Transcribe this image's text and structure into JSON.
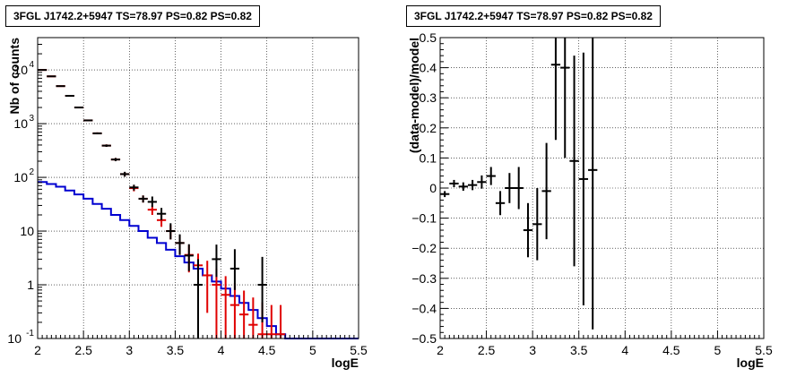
{
  "chart_data": [
    {
      "type": "scatter",
      "title": "3FGL J1742.2+5947 TS=78.97 PS=0.82 PS=0.82",
      "xlabel": "logE",
      "ylabel": "Nb of counts",
      "xlim": [
        2,
        5.5
      ],
      "ylim": [
        0.1,
        40000
      ],
      "yscale": "log",
      "grid": true,
      "x_ticks": [
        "2",
        "2.5",
        "3",
        "3.5",
        "4",
        "4.5",
        "5",
        "5.5"
      ],
      "y_ticks": [
        {
          "value": 0.1,
          "label": "10",
          "exp": "-1"
        },
        {
          "value": 1,
          "label": "1",
          "exp": ""
        },
        {
          "value": 10,
          "label": "10",
          "exp": ""
        },
        {
          "value": 100,
          "label": "10",
          "exp": "2"
        },
        {
          "value": 1000,
          "label": "10",
          "exp": "3"
        },
        {
          "value": 10000,
          "label": "10",
          "exp": "4"
        }
      ],
      "series": [
        {
          "color": "#000000",
          "style": "errorbar",
          "points": [
            {
              "x": 2.05,
              "y": 10000,
              "yerr_lo": 100,
              "yerr_hi": 100
            },
            {
              "x": 2.15,
              "y": 7600,
              "yerr_lo": 87,
              "yerr_hi": 87
            },
            {
              "x": 2.25,
              "y": 5000,
              "yerr_lo": 70,
              "yerr_hi": 70
            },
            {
              "x": 2.35,
              "y": 3300,
              "yerr_lo": 57,
              "yerr_hi": 57
            },
            {
              "x": 2.45,
              "y": 2000,
              "yerr_lo": 45,
              "yerr_hi": 45
            },
            {
              "x": 2.55,
              "y": 1150,
              "yerr_lo": 34,
              "yerr_hi": 34
            },
            {
              "x": 2.65,
              "y": 660,
              "yerr_lo": 26,
              "yerr_hi": 26
            },
            {
              "x": 2.75,
              "y": 390,
              "yerr_lo": 20,
              "yerr_hi": 20
            },
            {
              "x": 2.85,
              "y": 215,
              "yerr_lo": 15,
              "yerr_hi": 15
            },
            {
              "x": 2.95,
              "y": 115,
              "yerr_lo": 12,
              "yerr_hi": 12
            },
            {
              "x": 3.05,
              "y": 65,
              "yerr_lo": 8,
              "yerr_hi": 8
            },
            {
              "x": 3.15,
              "y": 40,
              "yerr_lo": 6,
              "yerr_hi": 6
            },
            {
              "x": 3.25,
              "y": 35,
              "yerr_lo": 7,
              "yerr_hi": 9
            },
            {
              "x": 3.35,
              "y": 21,
              "yerr_lo": 5,
              "yerr_hi": 6
            },
            {
              "x": 3.45,
              "y": 10,
              "yerr_lo": 3,
              "yerr_hi": 4
            },
            {
              "x": 3.55,
              "y": 6,
              "yerr_lo": 2.4,
              "yerr_hi": 2.7
            },
            {
              "x": 3.65,
              "y": 3.5,
              "yerr_lo": 1.7,
              "yerr_hi": 2.2
            },
            {
              "x": 3.75,
              "y": 1,
              "yerr_lo": 0.9,
              "yerr_hi": 2
            },
            {
              "x": 3.95,
              "y": 3,
              "yerr_lo": 1.6,
              "yerr_hi": 2.6
            },
            {
              "x": 4.15,
              "y": 2,
              "yerr_lo": 1.2,
              "yerr_hi": 2.6
            },
            {
              "x": 4.45,
              "y": 1,
              "yerr_lo": 0.8,
              "yerr_hi": 2.3
            }
          ]
        },
        {
          "color": "#e00000",
          "style": "errorbar",
          "points": [
            {
              "x": 2.05,
              "y": 10000,
              "yerr_lo": 100,
              "yerr_hi": 100
            },
            {
              "x": 2.15,
              "y": 7600,
              "yerr_lo": 87,
              "yerr_hi": 87
            },
            {
              "x": 2.25,
              "y": 5000,
              "yerr_lo": 70,
              "yerr_hi": 70
            },
            {
              "x": 2.35,
              "y": 3300,
              "yerr_lo": 57,
              "yerr_hi": 57
            },
            {
              "x": 2.45,
              "y": 2000,
              "yerr_lo": 45,
              "yerr_hi": 45
            },
            {
              "x": 2.55,
              "y": 1150,
              "yerr_lo": 34,
              "yerr_hi": 34
            },
            {
              "x": 2.65,
              "y": 660,
              "yerr_lo": 26,
              "yerr_hi": 26
            },
            {
              "x": 2.75,
              "y": 390,
              "yerr_lo": 20,
              "yerr_hi": 20
            },
            {
              "x": 2.85,
              "y": 215,
              "yerr_lo": 15,
              "yerr_hi": 15
            },
            {
              "x": 2.95,
              "y": 115,
              "yerr_lo": 11,
              "yerr_hi": 11
            },
            {
              "x": 3.05,
              "y": 63,
              "yerr_lo": 8,
              "yerr_hi": 8
            },
            {
              "x": 3.15,
              "y": 40,
              "yerr_lo": 6,
              "yerr_hi": 6
            },
            {
              "x": 3.25,
              "y": 25,
              "yerr_lo": 5,
              "yerr_hi": 5
            },
            {
              "x": 3.35,
              "y": 16,
              "yerr_lo": 4,
              "yerr_hi": 4
            },
            {
              "x": 3.45,
              "y": 10,
              "yerr_lo": 3,
              "yerr_hi": 3
            },
            {
              "x": 3.55,
              "y": 6,
              "yerr_lo": 2.4,
              "yerr_hi": 2.4
            },
            {
              "x": 3.65,
              "y": 3.6,
              "yerr_lo": 1.9,
              "yerr_hi": 1.9
            },
            {
              "x": 3.75,
              "y": 2.3,
              "yerr_lo": 1.5,
              "yerr_hi": 1.5
            },
            {
              "x": 3.85,
              "y": 1.5,
              "yerr_lo": 1.2,
              "yerr_hi": 1.3
            },
            {
              "x": 3.95,
              "y": 1.0,
              "yerr_lo": 0.9,
              "yerr_hi": 1.0
            },
            {
              "x": 4.05,
              "y": 0.65,
              "yerr_lo": 0.55,
              "yerr_hi": 0.8
            },
            {
              "x": 4.15,
              "y": 0.42,
              "yerr_lo": 0.32,
              "yerr_hi": 0.65
            },
            {
              "x": 4.25,
              "y": 0.28,
              "yerr_lo": 0.18,
              "yerr_hi": 0.5
            },
            {
              "x": 4.35,
              "y": 0.18,
              "yerr_lo": 0.08,
              "yerr_hi": 0.4
            },
            {
              "x": 4.45,
              "y": 0.12,
              "yerr_lo": 0.02,
              "yerr_hi": 0.35
            },
            {
              "x": 4.55,
              "y": 0.12,
              "yerr_lo": 0.02,
              "yerr_hi": 0.3
            },
            {
              "x": 4.65,
              "y": 0.12,
              "yerr_lo": 0.02,
              "yerr_hi": 0.3
            }
          ]
        },
        {
          "color": "#0000d0",
          "style": "step",
          "bins": [
            {
              "x0": 2.0,
              "x1": 2.1,
              "y": 82
            },
            {
              "x0": 2.1,
              "x1": 2.2,
              "y": 75
            },
            {
              "x0": 2.2,
              "x1": 2.3,
              "y": 67
            },
            {
              "x0": 2.3,
              "x1": 2.4,
              "y": 57
            },
            {
              "x0": 2.4,
              "x1": 2.5,
              "y": 48
            },
            {
              "x0": 2.5,
              "x1": 2.6,
              "y": 40
            },
            {
              "x0": 2.6,
              "x1": 2.7,
              "y": 32
            },
            {
              "x0": 2.7,
              "x1": 2.8,
              "y": 26
            },
            {
              "x0": 2.8,
              "x1": 2.9,
              "y": 20
            },
            {
              "x0": 2.9,
              "x1": 3.0,
              "y": 16
            },
            {
              "x0": 3.0,
              "x1": 3.1,
              "y": 12.5
            },
            {
              "x0": 3.1,
              "x1": 3.2,
              "y": 10
            },
            {
              "x0": 3.2,
              "x1": 3.3,
              "y": 7.5
            },
            {
              "x0": 3.3,
              "x1": 3.4,
              "y": 6
            },
            {
              "x0": 3.4,
              "x1": 3.5,
              "y": 4.5
            },
            {
              "x0": 3.5,
              "x1": 3.6,
              "y": 3.4
            },
            {
              "x0": 3.6,
              "x1": 3.7,
              "y": 2.6
            },
            {
              "x0": 3.7,
              "x1": 3.8,
              "y": 2.0
            },
            {
              "x0": 3.8,
              "x1": 3.9,
              "y": 1.5
            },
            {
              "x0": 3.9,
              "x1": 4.0,
              "y": 1.15
            },
            {
              "x0": 4.0,
              "x1": 4.1,
              "y": 0.85
            },
            {
              "x0": 4.1,
              "x1": 4.2,
              "y": 0.62
            },
            {
              "x0": 4.2,
              "x1": 4.3,
              "y": 0.46
            },
            {
              "x0": 4.3,
              "x1": 4.4,
              "y": 0.34
            },
            {
              "x0": 4.4,
              "x1": 4.5,
              "y": 0.24
            },
            {
              "x0": 4.5,
              "x1": 4.6,
              "y": 0.17
            },
            {
              "x0": 4.6,
              "x1": 4.7,
              "y": 0.12
            },
            {
              "x0": 4.7,
              "x1": 5.5,
              "y": 0.1
            }
          ]
        }
      ]
    },
    {
      "type": "scatter",
      "title": "3FGL J1742.2+5947 TS=78.97 PS=0.82 PS=0.82",
      "xlabel": "logE",
      "ylabel": "(data-model)/model",
      "xlim": [
        2,
        5.5
      ],
      "ylim": [
        -0.5,
        0.5
      ],
      "yscale": "linear",
      "grid": true,
      "x_ticks": [
        "2",
        "2.5",
        "3",
        "3.5",
        "4",
        "4.5",
        "5",
        "5.5"
      ],
      "y_ticks": [
        "-0.5",
        "-0.4",
        "-0.3",
        "-0.2",
        "-0.1",
        "0",
        "0.1",
        "0.2",
        "0.3",
        "0.4",
        "0.5"
      ],
      "series": [
        {
          "color": "#000000",
          "style": "errorbar",
          "points": [
            {
              "x": 2.05,
              "y": -0.02,
              "yerr": 0.01
            },
            {
              "x": 2.15,
              "y": 0.015,
              "yerr": 0.012
            },
            {
              "x": 2.25,
              "y": 0.005,
              "yerr": 0.014
            },
            {
              "x": 2.35,
              "y": 0.01,
              "yerr": 0.017
            },
            {
              "x": 2.45,
              "y": 0.02,
              "yerr": 0.022
            },
            {
              "x": 2.55,
              "y": 0.04,
              "yerr": 0.03
            },
            {
              "x": 2.65,
              "y": -0.05,
              "yerr": 0.04
            },
            {
              "x": 2.75,
              "y": 0.0,
              "yerr": 0.05
            },
            {
              "x": 2.85,
              "y": 0.0,
              "yerr": 0.07
            },
            {
              "x": 2.95,
              "y": -0.14,
              "yerr": 0.09
            },
            {
              "x": 3.05,
              "y": -0.12,
              "yerr": 0.12
            },
            {
              "x": 3.15,
              "y": -0.01,
              "yerr": 0.16
            },
            {
              "x": 3.25,
              "y": 0.41,
              "yerr": 0.25
            },
            {
              "x": 3.35,
              "y": 0.4,
              "yerr": 0.3
            },
            {
              "x": 3.45,
              "y": 0.09,
              "yerr": 0.35
            },
            {
              "x": 3.55,
              "y": 0.03,
              "yerr": 0.42
            },
            {
              "x": 3.65,
              "y": 0.06,
              "yerr": 0.53
            }
          ]
        }
      ]
    }
  ]
}
